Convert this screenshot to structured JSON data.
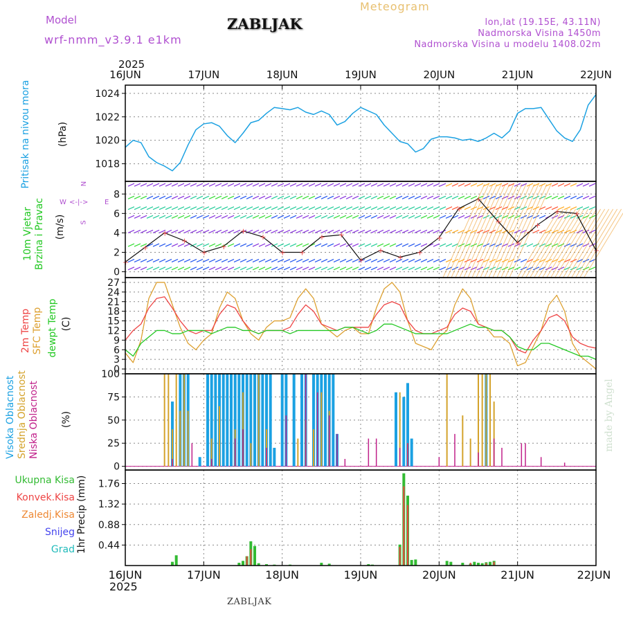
{
  "header": {
    "model_label": "Model",
    "model_name": "wrf-nmm_v3.9.1  e1km",
    "station": "ZABLJAK",
    "title": "Meteogram",
    "coords": "lon,lat (19.15E, 43.11N)",
    "elevation": "Nadmorska Visina 1450m",
    "model_elevation": "Nadmorska Visina u modelu 1408.02m",
    "credit": "made by Angel",
    "footer_station": "ZABLJAK"
  },
  "colors": {
    "pressure": "#1ba1e2",
    "wind_title": "#22c822",
    "temp_2m": "#ee4444",
    "temp_sfc": "#dda030",
    "dewpoint": "#22c822",
    "cloud_high": "#1ba1e2",
    "cloud_mid": "#d4a22a",
    "cloud_low": "#c0208a",
    "precip_total": "#33bb33",
    "precip_conv": "#ee4444",
    "precip_strat": "#ee8833",
    "snow": "#4444ee",
    "hail": "#22bbbb",
    "header_violet": "#b050d0",
    "header_gold": "#e8c070"
  },
  "chart_data": [
    {
      "type": "line",
      "title": "",
      "ylabel_name": "Pritisak na nivou mora",
      "ylabel_unit": "(hPa)",
      "year": "2025",
      "xticks": [
        "16JUN",
        "17JUN",
        "18JUN",
        "19JUN",
        "20JUN",
        "21JUN",
        "22JUN"
      ],
      "ylim": [
        1016.5,
        1024.7
      ],
      "yticks": [
        1018,
        1020,
        1022,
        1024
      ],
      "x_days": [
        0,
        0.1,
        0.2,
        0.3,
        0.4,
        0.5,
        0.6,
        0.7,
        0.8,
        0.9,
        1.0,
        1.1,
        1.2,
        1.3,
        1.4,
        1.5,
        1.6,
        1.7,
        1.8,
        1.9,
        2.0,
        2.1,
        2.2,
        2.3,
        2.4,
        2.5,
        2.6,
        2.7,
        2.8,
        2.9,
        3.0,
        3.1,
        3.2,
        3.3,
        3.4,
        3.5,
        3.6,
        3.7,
        3.8,
        3.9,
        4.0,
        4.1,
        4.2,
        4.3,
        4.4,
        4.5,
        4.6,
        4.7,
        4.8,
        4.9,
        5.0,
        5.1,
        5.2,
        5.3,
        5.4,
        5.5,
        5.6,
        5.7,
        5.8,
        5.9,
        6.0
      ],
      "series": [
        {
          "values": [
            1019.4,
            1020.0,
            1019.8,
            1018.6,
            1018.1,
            1017.8,
            1017.4,
            1018.1,
            1019.6,
            1020.9,
            1021.4,
            1021.5,
            1021.2,
            1020.4,
            1019.8,
            1020.6,
            1021.5,
            1021.7,
            1022.3,
            1022.8,
            1022.7,
            1022.6,
            1022.8,
            1022.4,
            1022.2,
            1022.5,
            1022.2,
            1021.3,
            1021.6,
            1022.3,
            1022.8,
            1022.5,
            1022.2,
            1021.3,
            1020.6,
            1019.9,
            1019.7,
            1019.0,
            1019.3,
            1020.1,
            1020.3,
            1020.3,
            1020.2,
            1020.0,
            1020.1,
            1019.9,
            1020.2,
            1020.6,
            1020.2,
            1020.8,
            1022.3,
            1022.7,
            1022.7,
            1022.8,
            1021.8,
            1020.8,
            1020.2,
            1019.9,
            1020.9,
            1023.0,
            1023.9
          ]
        }
      ]
    },
    {
      "type": "line",
      "title": "",
      "ylabel_name": "10m Vjetar Brzina i Pravac",
      "ylabel_unit": "(m/s)",
      "compass": {
        "n": "N",
        "s": "S",
        "e": "E",
        "w": "W"
      },
      "ylim": [
        -0.6,
        9.3
      ],
      "yticks": [
        0,
        2,
        4,
        6,
        8
      ],
      "x_days": [
        0,
        0.25,
        0.5,
        0.75,
        1.0,
        1.25,
        1.5,
        1.75,
        2.0,
        2.25,
        2.5,
        2.75,
        3.0,
        3.25,
        3.5,
        3.75,
        4.0,
        4.25,
        4.5,
        4.75,
        5.0,
        5.25,
        5.5,
        5.75,
        6.0
      ],
      "series": [
        {
          "name": "speed",
          "values": [
            1.0,
            2.5,
            4.0,
            3.2,
            2.0,
            2.6,
            4.2,
            3.6,
            2.0,
            2.0,
            3.6,
            3.8,
            1.2,
            2.2,
            1.5,
            2.0,
            3.5,
            6.5,
            7.5,
            5.2,
            3.0,
            4.8,
            6.2,
            6.0,
            2.2
          ]
        }
      ]
    },
    {
      "type": "line",
      "title": "",
      "ylabel_names": [
        "2m Temp",
        "SFC Temp",
        "dewpt Temp"
      ],
      "ylabel_unit": "(C)",
      "ylim": [
        -1.5,
        28.5
      ],
      "yticks": [
        0,
        3,
        6,
        9,
        12,
        15,
        18,
        21,
        24,
        27
      ],
      "x_days": [
        0,
        0.1,
        0.2,
        0.3,
        0.4,
        0.5,
        0.6,
        0.7,
        0.8,
        0.9,
        1.0,
        1.1,
        1.2,
        1.3,
        1.4,
        1.5,
        1.6,
        1.7,
        1.8,
        1.9,
        2.0,
        2.1,
        2.2,
        2.3,
        2.4,
        2.5,
        2.6,
        2.7,
        2.8,
        2.9,
        3.0,
        3.1,
        3.2,
        3.3,
        3.4,
        3.5,
        3.6,
        3.7,
        3.8,
        3.9,
        4.0,
        4.1,
        4.2,
        4.3,
        4.4,
        4.5,
        4.6,
        4.7,
        4.8,
        4.9,
        5.0,
        5.1,
        5.2,
        5.3,
        5.4,
        5.5,
        5.6,
        5.7,
        5.8,
        5.9,
        6.0
      ],
      "series": [
        {
          "name": "2m Temp",
          "values": [
            9,
            12,
            14,
            19,
            22,
            22.5,
            19,
            15,
            12,
            11,
            12,
            12,
            17,
            20,
            19,
            15,
            12,
            11,
            12,
            12,
            12,
            13,
            17,
            20,
            18,
            14,
            13,
            12,
            13,
            13,
            13,
            13,
            17,
            20,
            21,
            20,
            15,
            12,
            11,
            11,
            12,
            13,
            17,
            19,
            18,
            14,
            13,
            12,
            12,
            10,
            6,
            5,
            9,
            12,
            16,
            17,
            15,
            10,
            8,
            7,
            6.5
          ]
        },
        {
          "name": "SFC Temp",
          "values": [
            5,
            2,
            9,
            22,
            27,
            27,
            20,
            13,
            8,
            6,
            9,
            11,
            19,
            24,
            22,
            15,
            11,
            9,
            13,
            15,
            15,
            16,
            22,
            25,
            22,
            14,
            12,
            10,
            12,
            13,
            11,
            11,
            19,
            25,
            27,
            24,
            15,
            8,
            7,
            6,
            10,
            12,
            20,
            25,
            22,
            14,
            13,
            10,
            10,
            8,
            1,
            2,
            7,
            12,
            20,
            23,
            18,
            8,
            4,
            2,
            0
          ]
        },
        {
          "name": "dewpt Temp",
          "values": [
            6,
            4,
            8,
            10,
            12,
            12,
            11,
            11,
            12,
            12,
            12,
            11,
            12,
            13,
            13,
            12,
            12,
            11,
            12,
            12,
            12,
            11,
            12,
            12,
            12,
            12,
            12,
            12,
            13,
            13,
            12,
            11,
            12,
            14,
            14,
            13,
            12,
            11,
            11,
            11,
            11,
            11,
            12,
            13,
            14,
            13,
            13,
            12,
            12,
            10,
            7,
            6,
            6,
            8,
            8,
            7,
            6,
            5,
            4,
            4,
            3
          ]
        }
      ]
    },
    {
      "type": "bar",
      "title": "",
      "ylabel_names": [
        "Visoka Oblacnost",
        "Srednja Oblacnost",
        "Niska Oblacnost"
      ],
      "ylabel_unit": "(%)",
      "ylim": [
        -4,
        100
      ],
      "yticks": [
        0,
        25,
        50,
        75,
        100
      ],
      "series": [
        {
          "name": "Visoka Oblacnost",
          "x_days": [
            0.6,
            0.7,
            0.75,
            0.8,
            0.95,
            1.05,
            1.1,
            1.15,
            1.2,
            1.25,
            1.3,
            1.35,
            1.4,
            1.45,
            1.5,
            1.55,
            1.6,
            1.65,
            1.7,
            1.75,
            1.8,
            1.85,
            1.9,
            2.0,
            2.05,
            2.15,
            2.25,
            2.3,
            2.4,
            2.45,
            2.5,
            2.55,
            2.6,
            2.65,
            2.7,
            3.45,
            3.55,
            3.6,
            3.65,
            4.6
          ],
          "values": [
            70,
            100,
            100,
            100,
            10,
            100,
            100,
            100,
            100,
            100,
            100,
            100,
            100,
            100,
            100,
            100,
            100,
            100,
            100,
            100,
            100,
            100,
            20,
            100,
            100,
            100,
            100,
            100,
            100,
            100,
            100,
            100,
            100,
            100,
            35,
            80,
            75,
            90,
            30,
            100
          ]
        },
        {
          "name": "Srednja Oblacnost",
          "x_days": [
            0.5,
            0.55,
            0.6,
            0.65,
            0.7,
            0.75,
            0.8,
            1.1,
            1.2,
            1.4,
            1.5,
            1.6,
            1.7,
            1.8,
            2.2,
            2.3,
            2.4,
            2.5,
            2.6,
            3.5,
            3.6,
            4.1,
            4.3,
            4.4,
            4.5,
            4.55,
            4.6,
            4.65,
            4.7
          ],
          "values": [
            100,
            100,
            40,
            100,
            60,
            100,
            60,
            30,
            65,
            40,
            80,
            25,
            100,
            40,
            30,
            50,
            40,
            80,
            60,
            80,
            25,
            100,
            55,
            30,
            100,
            100,
            100,
            100,
            70
          ]
        },
        {
          "name": "Niska Oblacnost",
          "x_days": [
            0.6,
            0.85,
            1.1,
            1.4,
            1.5,
            1.8,
            2.05,
            2.3,
            2.45,
            2.6,
            2.7,
            2.8,
            3.1,
            3.2,
            3.5,
            3.6,
            4.0,
            4.2,
            4.5,
            4.7,
            4.8,
            5.05,
            5.1,
            5.3,
            5.6
          ],
          "values": [
            8,
            25,
            8,
            30,
            40,
            20,
            55,
            100,
            80,
            55,
            35,
            8,
            30,
            30,
            20,
            25,
            10,
            35,
            15,
            30,
            20,
            25,
            25,
            10,
            4
          ]
        }
      ]
    },
    {
      "type": "bar",
      "title": "",
      "ylabel_name": "1hr Precip",
      "ylabel_unit": "(mm)",
      "ylim": [
        0,
        2.05
      ],
      "yticks": [
        0.44,
        0.88,
        1.32,
        1.76
      ],
      "legend": [
        "Ukupna Kisa",
        "Konvek.Kisa",
        "Zaledj.Kisa",
        "Snijeg",
        "Grad"
      ],
      "series": [
        {
          "name": "Ukupna Kisa",
          "x_days": [
            0.6,
            0.65,
            1.45,
            1.5,
            1.55,
            1.6,
            1.65,
            1.7,
            1.8,
            1.9,
            2.1,
            2.5,
            2.6,
            3.1,
            3.15,
            3.5,
            3.55,
            3.6,
            3.65,
            3.7,
            4.1,
            4.15,
            4.3,
            4.4,
            4.45,
            4.5,
            4.55,
            4.6,
            4.65,
            4.7
          ],
          "values": [
            0.08,
            0.22,
            0.06,
            0.1,
            0.2,
            0.52,
            0.42,
            0.05,
            0.03,
            0.02,
            0.02,
            0.06,
            0.04,
            0.03,
            0.02,
            0.45,
            1.98,
            1.5,
            0.12,
            0.13,
            0.1,
            0.08,
            0.06,
            0.04,
            0.08,
            0.06,
            0.05,
            0.07,
            0.08,
            0.1
          ]
        },
        {
          "name": "Konvek.Kisa",
          "x_days": [
            1.55,
            1.6,
            3.5,
            3.55,
            3.6,
            4.4,
            4.6,
            4.7
          ],
          "values": [
            0.2,
            0.35,
            0.4,
            1.7,
            1.3,
            0.06,
            0.05,
            0.08
          ]
        }
      ]
    }
  ]
}
